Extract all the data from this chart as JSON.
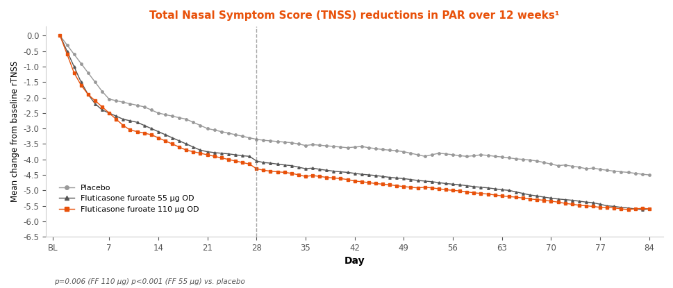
{
  "title": "Total Nasal Symptom Score (TNSS) reductions in PAR over 12 weeks¹",
  "title_color": "#E8510A",
  "xlabel": "Day",
  "ylabel": "Mean change from baseline rTNSS",
  "xtick_labels": [
    "BL",
    "7",
    "14",
    "21",
    "28",
    "35",
    "42",
    "49",
    "56",
    "63",
    "70",
    "77",
    "84"
  ],
  "xtick_values": [
    0,
    7,
    14,
    21,
    28,
    35,
    42,
    49,
    56,
    63,
    70,
    77,
    84
  ],
  "ylim": [
    -6.5,
    0.3
  ],
  "yticks": [
    0.0,
    -0.5,
    -1.0,
    -1.5,
    -2.0,
    -2.5,
    -3.0,
    -3.5,
    -4.0,
    -4.5,
    -5.0,
    -5.5,
    -6.0,
    -6.5
  ],
  "vline_x": 28,
  "annotation": "p=0.006 (FF 110 μg) p<0.001 (FF 55 μg) vs. placebo",
  "placebo_color": "#999999",
  "ff55_color": "#555555",
  "ff110_color": "#E8510A",
  "placebo_days": [
    0,
    1,
    2,
    3,
    4,
    5,
    6,
    7,
    8,
    9,
    10,
    11,
    12,
    13,
    14,
    15,
    16,
    17,
    18,
    19,
    20,
    21,
    22,
    23,
    24,
    25,
    26,
    27,
    28,
    29,
    30,
    31,
    32,
    33,
    34,
    35,
    36,
    37,
    38,
    39,
    40,
    41,
    42,
    43,
    44,
    45,
    46,
    47,
    48,
    49,
    50,
    51,
    52,
    53,
    54,
    55,
    56,
    57,
    58,
    59,
    60,
    61,
    62,
    63,
    64,
    65,
    66,
    67,
    68,
    69,
    70,
    71,
    72,
    73,
    74,
    75,
    76,
    77,
    78,
    79,
    80,
    81,
    82,
    83,
    84
  ],
  "placebo_vals": [
    0,
    -0.3,
    -0.6,
    -0.9,
    -1.2,
    -1.5,
    -1.8,
    -2.05,
    -2.1,
    -2.15,
    -2.2,
    -2.25,
    -2.3,
    -2.4,
    -2.5,
    -2.55,
    -2.6,
    -2.65,
    -2.7,
    -2.8,
    -2.9,
    -3.0,
    -3.05,
    -3.1,
    -3.15,
    -3.2,
    -3.25,
    -3.3,
    -3.35,
    -3.38,
    -3.4,
    -3.42,
    -3.44,
    -3.46,
    -3.5,
    -3.55,
    -3.52,
    -3.54,
    -3.56,
    -3.58,
    -3.6,
    -3.62,
    -3.6,
    -3.58,
    -3.62,
    -3.65,
    -3.68,
    -3.7,
    -3.72,
    -3.75,
    -3.8,
    -3.85,
    -3.9,
    -3.85,
    -3.8,
    -3.82,
    -3.85,
    -3.88,
    -3.9,
    -3.88,
    -3.85,
    -3.87,
    -3.9,
    -3.92,
    -3.95,
    -3.98,
    -4.0,
    -4.02,
    -4.05,
    -4.1,
    -4.15,
    -4.2,
    -4.18,
    -4.22,
    -4.25,
    -4.3,
    -4.28,
    -4.32,
    -4.35,
    -4.38,
    -4.4,
    -4.42,
    -4.45,
    -4.48,
    -4.5
  ],
  "ff55_days": [
    0,
    1,
    2,
    3,
    4,
    5,
    6,
    7,
    8,
    9,
    10,
    11,
    12,
    13,
    14,
    15,
    16,
    17,
    18,
    19,
    20,
    21,
    22,
    23,
    24,
    25,
    26,
    27,
    28,
    29,
    30,
    31,
    32,
    33,
    34,
    35,
    36,
    37,
    38,
    39,
    40,
    41,
    42,
    43,
    44,
    45,
    46,
    47,
    48,
    49,
    50,
    51,
    52,
    53,
    54,
    55,
    56,
    57,
    58,
    59,
    60,
    61,
    62,
    63,
    64,
    65,
    66,
    67,
    68,
    69,
    70,
    71,
    72,
    73,
    74,
    75,
    76,
    77,
    78,
    79,
    80,
    81,
    82,
    83,
    84
  ],
  "ff55_vals": [
    0,
    -0.5,
    -1.0,
    -1.5,
    -1.9,
    -2.2,
    -2.4,
    -2.5,
    -2.6,
    -2.7,
    -2.75,
    -2.8,
    -2.9,
    -3.0,
    -3.1,
    -3.2,
    -3.3,
    -3.4,
    -3.5,
    -3.6,
    -3.7,
    -3.75,
    -3.78,
    -3.8,
    -3.82,
    -3.85,
    -3.88,
    -3.9,
    -4.05,
    -4.1,
    -4.12,
    -4.15,
    -4.18,
    -4.2,
    -4.25,
    -4.3,
    -4.28,
    -4.32,
    -4.35,
    -4.38,
    -4.4,
    -4.42,
    -4.45,
    -4.48,
    -4.5,
    -4.52,
    -4.55,
    -4.58,
    -4.6,
    -4.62,
    -4.65,
    -4.68,
    -4.7,
    -4.72,
    -4.75,
    -4.78,
    -4.8,
    -4.82,
    -4.85,
    -4.88,
    -4.9,
    -4.92,
    -4.95,
    -4.98,
    -5.0,
    -5.05,
    -5.1,
    -5.15,
    -5.18,
    -5.22,
    -5.25,
    -5.28,
    -5.3,
    -5.32,
    -5.35,
    -5.38,
    -5.4,
    -5.45,
    -5.5,
    -5.52,
    -5.55,
    -5.57,
    -5.6,
    -5.62,
    -5.6
  ],
  "ff110_days": [
    0,
    1,
    2,
    3,
    4,
    5,
    6,
    7,
    8,
    9,
    10,
    11,
    12,
    13,
    14,
    15,
    16,
    17,
    18,
    19,
    20,
    21,
    22,
    23,
    24,
    25,
    26,
    27,
    28,
    29,
    30,
    31,
    32,
    33,
    34,
    35,
    36,
    37,
    38,
    39,
    40,
    41,
    42,
    43,
    44,
    45,
    46,
    47,
    48,
    49,
    50,
    51,
    52,
    53,
    54,
    55,
    56,
    57,
    58,
    59,
    60,
    61,
    62,
    63,
    64,
    65,
    66,
    67,
    68,
    69,
    70,
    71,
    72,
    73,
    74,
    75,
    76,
    77,
    78,
    79,
    80,
    81,
    82,
    83,
    84
  ],
  "ff110_vals": [
    0,
    -0.6,
    -1.2,
    -1.6,
    -1.9,
    -2.1,
    -2.3,
    -2.5,
    -2.7,
    -2.9,
    -3.05,
    -3.1,
    -3.15,
    -3.2,
    -3.3,
    -3.4,
    -3.5,
    -3.6,
    -3.7,
    -3.75,
    -3.8,
    -3.85,
    -3.9,
    -3.95,
    -4.0,
    -4.05,
    -4.1,
    -4.15,
    -4.3,
    -4.35,
    -4.38,
    -4.4,
    -4.42,
    -4.45,
    -4.5,
    -4.55,
    -4.52,
    -4.55,
    -4.58,
    -4.6,
    -4.62,
    -4.65,
    -4.7,
    -4.72,
    -4.75,
    -4.78,
    -4.8,
    -4.82,
    -4.85,
    -4.88,
    -4.9,
    -4.92,
    -4.9,
    -4.92,
    -4.95,
    -4.98,
    -5.0,
    -5.02,
    -5.05,
    -5.08,
    -5.1,
    -5.12,
    -5.15,
    -5.18,
    -5.2,
    -5.22,
    -5.25,
    -5.28,
    -5.3,
    -5.32,
    -5.35,
    -5.38,
    -5.42,
    -5.45,
    -5.48,
    -5.5,
    -5.52,
    -5.55,
    -5.55,
    -5.57,
    -5.6,
    -5.62,
    -5.6,
    -5.58,
    -5.6
  ]
}
